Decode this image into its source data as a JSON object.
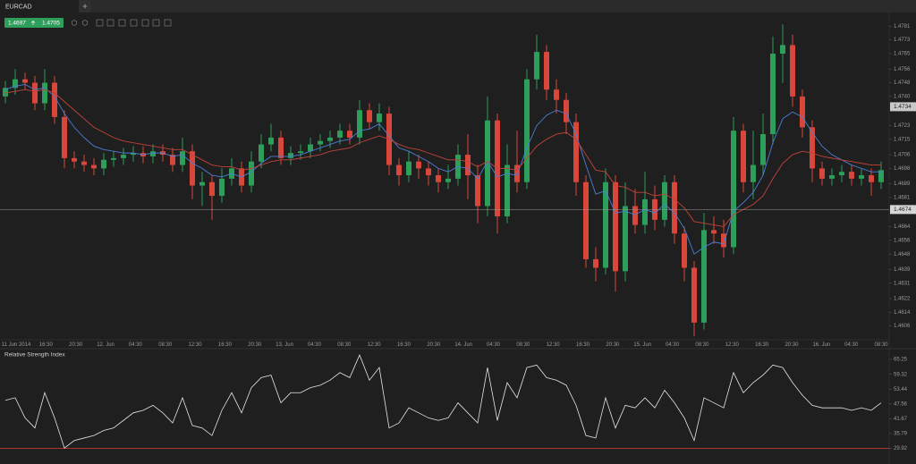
{
  "tab": "EURCAD",
  "quote": {
    "bid": 1.4697,
    "ask": 1.4705
  },
  "chart_data": [
    {
      "type": "candlestick",
      "up_color": "#2e9e5b",
      "down_color": "#d9473a",
      "ylim": [
        1.4598,
        1.4789
      ],
      "yticks": [
        1.4781,
        1.4773,
        1.4765,
        1.4756,
        1.4748,
        {
          "value": 1.474,
          "label": "1.4740"
        },
        1.4723,
        1.4715,
        1.4706,
        1.4698,
        1.4689,
        1.4681,
        1.4664,
        1.4656,
        1.4648,
        1.4639,
        1.4631,
        1.4622,
        1.4614,
        1.4606
      ],
      "cursor_price": 1.4734,
      "price_line": 1.4674,
      "x_labels": [
        "11 Jun 2014",
        "16:30",
        "20:30",
        "12. Jun",
        "04:30",
        "08:30",
        "12:30",
        "16:30",
        "20:30",
        "13. Jun",
        "04:30",
        "08:30",
        "12:30",
        "16:30",
        "20:30",
        "14. Jun",
        "04:30",
        "08:30",
        "12:30",
        "16:30",
        "20:30",
        "15. Jun",
        "04:30",
        "08:30",
        "12:30",
        "16:30",
        "20:30",
        "16. Jun",
        "04:30",
        "08:30"
      ],
      "open": [
        1.474,
        1.4745,
        1.475,
        1.4748,
        1.4736,
        1.4748,
        1.4728,
        1.4704,
        1.4702,
        1.47,
        1.4698,
        1.4703,
        1.4704,
        1.4706,
        1.4707,
        1.4705,
        1.4708,
        1.4706,
        1.47,
        1.4708,
        1.4688,
        1.469,
        1.4682,
        1.4692,
        1.4698,
        1.4688,
        1.4702,
        1.4712,
        1.4716,
        1.4704,
        1.4707,
        1.4708,
        1.4712,
        1.4714,
        1.4716,
        1.472,
        1.4716,
        1.4732,
        1.4725,
        1.473,
        1.47,
        1.4694,
        1.4702,
        1.4698,
        1.4694,
        1.469,
        1.4692,
        1.4706,
        1.4694,
        1.4676,
        1.4726,
        1.467,
        1.47,
        1.469,
        1.475,
        1.4766,
        1.4744,
        1.4738,
        1.4725,
        1.469,
        1.4645,
        1.464,
        1.469,
        1.4638,
        1.4676,
        1.4665,
        1.468,
        1.4668,
        1.469,
        1.466,
        1.464,
        1.4608,
        1.4662,
        1.466,
        1.4652,
        1.472,
        1.469,
        1.47,
        1.4718,
        1.4765,
        1.477,
        1.474,
        1.4722,
        1.4698,
        1.4692,
        1.4694,
        1.4696,
        1.4692,
        1.4694,
        1.469
      ],
      "high": [
        1.4749,
        1.4756,
        1.4754,
        1.4752,
        1.4756,
        1.4752,
        1.4732,
        1.4708,
        1.4706,
        1.4704,
        1.4707,
        1.4708,
        1.471,
        1.4711,
        1.4711,
        1.4712,
        1.4712,
        1.471,
        1.4716,
        1.4712,
        1.4696,
        1.4694,
        1.4698,
        1.4704,
        1.4702,
        1.4708,
        1.4718,
        1.4724,
        1.472,
        1.4711,
        1.4712,
        1.4716,
        1.4718,
        1.472,
        1.4724,
        1.4724,
        1.4738,
        1.4736,
        1.4736,
        1.4734,
        1.4704,
        1.4708,
        1.4706,
        1.4702,
        1.4698,
        1.47,
        1.4712,
        1.4718,
        1.47,
        1.474,
        1.473,
        1.4712,
        1.472,
        1.4756,
        1.4776,
        1.477,
        1.475,
        1.4742,
        1.473,
        1.4694,
        1.4652,
        1.4698,
        1.4694,
        1.469,
        1.4686,
        1.4696,
        1.4688,
        1.4694,
        1.4694,
        1.4664,
        1.4644,
        1.4672,
        1.467,
        1.4668,
        1.4728,
        1.4724,
        1.472,
        1.473,
        1.4775,
        1.4782,
        1.4776,
        1.4744,
        1.4726,
        1.4702,
        1.4698,
        1.47,
        1.47,
        1.4698,
        1.4698,
        1.4702
      ],
      "low": [
        1.4736,
        1.4741,
        1.4744,
        1.4732,
        1.4732,
        1.4724,
        1.4698,
        1.4698,
        1.4696,
        1.4694,
        1.4694,
        1.4699,
        1.47,
        1.4702,
        1.4701,
        1.4701,
        1.4702,
        1.4696,
        1.4696,
        1.468,
        1.4676,
        1.4668,
        1.4678,
        1.4688,
        1.4684,
        1.4684,
        1.4698,
        1.4708,
        1.47,
        1.47,
        1.4703,
        1.4704,
        1.4708,
        1.471,
        1.4712,
        1.4712,
        1.4712,
        1.4721,
        1.472,
        1.4694,
        1.4688,
        1.469,
        1.4692,
        1.4688,
        1.4684,
        1.4686,
        1.4688,
        1.468,
        1.4666,
        1.467,
        1.466,
        1.4666,
        1.4684,
        1.4686,
        1.4744,
        1.4738,
        1.473,
        1.4718,
        1.4682,
        1.464,
        1.4632,
        1.4636,
        1.4626,
        1.4632,
        1.466,
        1.466,
        1.4662,
        1.4664,
        1.4654,
        1.4632,
        1.46,
        1.4604,
        1.4654,
        1.4646,
        1.4648,
        1.4684,
        1.468,
        1.4694,
        1.4712,
        1.4748,
        1.4734,
        1.4716,
        1.469,
        1.4688,
        1.4688,
        1.469,
        1.4688,
        1.4688,
        1.4682,
        1.4686
      ],
      "close": [
        1.4745,
        1.475,
        1.4748,
        1.4736,
        1.4748,
        1.4728,
        1.4704,
        1.4702,
        1.47,
        1.4698,
        1.4703,
        1.4704,
        1.4706,
        1.4707,
        1.4705,
        1.4708,
        1.4706,
        1.47,
        1.4708,
        1.4688,
        1.469,
        1.4682,
        1.4692,
        1.4698,
        1.4688,
        1.4702,
        1.4712,
        1.4716,
        1.4704,
        1.4707,
        1.4708,
        1.4712,
        1.4714,
        1.4716,
        1.472,
        1.4716,
        1.4732,
        1.4725,
        1.473,
        1.47,
        1.4694,
        1.4702,
        1.4698,
        1.4694,
        1.469,
        1.4692,
        1.4706,
        1.4694,
        1.4676,
        1.4726,
        1.467,
        1.47,
        1.469,
        1.475,
        1.4766,
        1.4744,
        1.4738,
        1.4725,
        1.469,
        1.4645,
        1.464,
        1.469,
        1.4638,
        1.4676,
        1.4665,
        1.468,
        1.4668,
        1.469,
        1.466,
        1.464,
        1.4608,
        1.4662,
        1.466,
        1.4652,
        1.472,
        1.469,
        1.47,
        1.4718,
        1.4765,
        1.477,
        1.474,
        1.4722,
        1.4698,
        1.4692,
        1.4694,
        1.4696,
        1.4692,
        1.4694,
        1.469,
        1.4697
      ],
      "lines": [
        {
          "color": "#4a7fd6",
          "values": [
            1.4744,
            1.4746,
            1.4747,
            1.4744,
            1.4745,
            1.474,
            1.473,
            1.4722,
            1.4716,
            1.4711,
            1.4709,
            1.4708,
            1.4707,
            1.4707,
            1.4706,
            1.4707,
            1.4707,
            1.4705,
            1.4706,
            1.4701,
            1.4698,
            1.4694,
            1.4693,
            1.4695,
            1.4693,
            1.4696,
            1.4701,
            1.4705,
            1.4705,
            1.4705,
            1.4706,
            1.4708,
            1.471,
            1.4712,
            1.4714,
            1.4715,
            1.472,
            1.4721,
            1.4724,
            1.4717,
            1.471,
            1.4708,
            1.4705,
            1.4702,
            1.4698,
            1.4696,
            1.4699,
            1.4698,
            1.4692,
            1.4702,
            1.4693,
            1.4695,
            1.4694,
            1.471,
            1.4723,
            1.4729,
            1.4732,
            1.473,
            1.4718,
            1.47,
            1.4683,
            1.4685,
            1.4672,
            1.4673,
            1.4671,
            1.4674,
            1.4672,
            1.4677,
            1.4672,
            1.4663,
            1.4648,
            1.4652,
            1.4655,
            1.4654,
            1.4673,
            1.4678,
            1.4684,
            1.4694,
            1.4713,
            1.4727,
            1.4731,
            1.4728,
            1.4719,
            1.4711,
            1.4706,
            1.4703,
            1.47,
            1.4698,
            1.4696,
            1.4696
          ]
        },
        {
          "color": "#c0433a",
          "values": [
            1.4742,
            1.4743,
            1.4744,
            1.4743,
            1.4744,
            1.4742,
            1.4737,
            1.4732,
            1.4727,
            1.4722,
            1.4719,
            1.4716,
            1.4714,
            1.4713,
            1.4712,
            1.4711,
            1.471,
            1.4709,
            1.4709,
            1.4706,
            1.4703,
            1.47,
            1.4699,
            1.4699,
            1.4697,
            1.4698,
            1.47,
            1.4702,
            1.4703,
            1.4703,
            1.4704,
            1.4705,
            1.4706,
            1.4708,
            1.4709,
            1.471,
            1.4713,
            1.4715,
            1.4717,
            1.4715,
            1.4712,
            1.471,
            1.4709,
            1.4707,
            1.4705,
            1.4703,
            1.4703,
            1.4702,
            1.4699,
            1.4702,
            1.4698,
            1.4698,
            1.4697,
            1.4704,
            1.4711,
            1.4715,
            1.4718,
            1.4719,
            1.4715,
            1.4706,
            1.4697,
            1.4696,
            1.4688,
            1.4687,
            1.4684,
            1.4684,
            1.4682,
            1.4683,
            1.468,
            1.4675,
            1.4667,
            1.4666,
            1.4665,
            1.4664,
            1.4671,
            1.4674,
            1.4677,
            1.4682,
            1.4692,
            1.4701,
            1.4706,
            1.4708,
            1.4707,
            1.4705,
            1.4704,
            1.4703,
            1.4702,
            1.4701,
            1.47,
            1.47
          ]
        }
      ]
    },
    {
      "type": "line",
      "title": "Relative Strength Index",
      "color": "#e6e6e6",
      "ylim": [
        25.1,
        68.8
      ],
      "yticks": [
        65.25,
        59.32,
        53.44,
        47.56,
        41.67,
        35.79,
        29.92
      ],
      "level": 29.92,
      "level_color": "#c0392b",
      "values": [
        49,
        50,
        42,
        38,
        52,
        42,
        30,
        33,
        34,
        35,
        37,
        38,
        41,
        44,
        45,
        47,
        44,
        40,
        50,
        39,
        38,
        35,
        45,
        52,
        44,
        54,
        58,
        59,
        48,
        52,
        52,
        54,
        55,
        57,
        60,
        58,
        67,
        57,
        62,
        38,
        40,
        46,
        44,
        42,
        41,
        42,
        48,
        44,
        40,
        62,
        41,
        56,
        50,
        62,
        63,
        58,
        57,
        55,
        47,
        35,
        34,
        50,
        38,
        47,
        46,
        50,
        46,
        53,
        48,
        42,
        33,
        50,
        48,
        46,
        60,
        52,
        56,
        59,
        63,
        62,
        56,
        51,
        47,
        46,
        46,
        46,
        45,
        46,
        45,
        48
      ]
    }
  ]
}
